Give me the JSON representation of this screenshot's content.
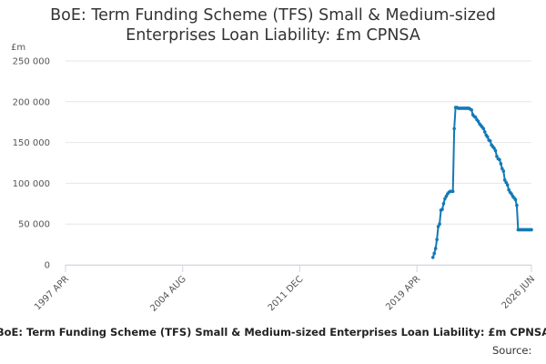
{
  "chart_data": {
    "type": "line",
    "title": "BoE: Term Funding Scheme (TFS) Small & Medium-sized Enterprises Loan Liability: £m CPNSA",
    "y_label": "£m",
    "footer": "BoE: Term Funding Scheme (TFS) Small & Medium-sized Enterprises Loan Liability: £m CPNSA",
    "source": "Source:",
    "xlim": [
      "1997 APR",
      "2026 JUN"
    ],
    "xticks": [
      "1997 APR",
      "2004 AUG",
      "2011 DEC",
      "2019 APR",
      "2026 JUN"
    ],
    "ylim": [
      0,
      250000
    ],
    "yticks": [
      {
        "value": 0,
        "label": "0"
      },
      {
        "value": 50000,
        "label": "50 000"
      },
      {
        "value": 100000,
        "label": "100 000"
      },
      {
        "value": 150000,
        "label": "150 000"
      },
      {
        "value": 200000,
        "label": "200 000"
      },
      {
        "value": 250000,
        "label": "250 000"
      }
    ],
    "grid": true,
    "x": [
      "2020 APR",
      "2020 MAY",
      "2020 JUN",
      "2020 JUL",
      "2020 AUG",
      "2020 SEP",
      "2020 OCT",
      "2020 NOV",
      "2020 DEC",
      "2021 JAN",
      "2021 FEB",
      "2021 MAR",
      "2021 APR",
      "2021 MAY",
      "2021 JUN",
      "2021 JUL",
      "2021 AUG",
      "2021 SEP",
      "2021 OCT",
      "2021 NOV",
      "2021 DEC",
      "2022 JAN",
      "2022 FEB",
      "2022 MAR",
      "2022 APR",
      "2022 MAY",
      "2022 JUN",
      "2022 JUL",
      "2022 AUG",
      "2022 SEP",
      "2022 OCT",
      "2022 NOV",
      "2022 DEC",
      "2023 JAN",
      "2023 FEB",
      "2023 MAR",
      "2023 APR",
      "2023 MAY",
      "2023 JUN",
      "2023 JUL",
      "2023 AUG",
      "2023 SEP",
      "2023 OCT",
      "2023 NOV",
      "2023 DEC",
      "2024 JAN",
      "2024 FEB",
      "2024 MAR",
      "2024 APR",
      "2024 MAY",
      "2024 JUN",
      "2024 JUL",
      "2024 AUG",
      "2024 SEP",
      "2024 OCT",
      "2024 NOV",
      "2024 DEC",
      "2025 JAN",
      "2025 FEB",
      "2025 MAR",
      "2025 APR",
      "2025 MAY",
      "2025 JUN",
      "2025 JUL",
      "2025 AUG",
      "2025 SEP",
      "2025 OCT",
      "2025 NOV",
      "2025 DEC",
      "2026 JAN",
      "2026 FEB",
      "2026 MAR",
      "2026 APR",
      "2026 MAY",
      "2026 JUN"
    ],
    "series": [
      {
        "color": "#1279b6",
        "values": [
          9000,
          14000,
          20000,
          31000,
          47000,
          50000,
          67000,
          68000,
          75000,
          81000,
          84000,
          87000,
          89000,
          90000,
          90000,
          90000,
          167000,
          193000,
          193000,
          192000,
          192000,
          192000,
          192000,
          192000,
          192000,
          192000,
          192000,
          192000,
          191000,
          190000,
          184000,
          182000,
          181000,
          178000,
          176000,
          173000,
          171000,
          169000,
          167000,
          163000,
          159000,
          157000,
          153000,
          152000,
          147000,
          145000,
          143000,
          140000,
          133000,
          130000,
          129000,
          124000,
          118000,
          115000,
          104000,
          101000,
          98000,
          92000,
          89000,
          87000,
          84000,
          82000,
          80000,
          73000,
          43000,
          43000,
          43000,
          43000,
          43000,
          43000,
          43000,
          43000,
          43000,
          43000,
          43000
        ]
      }
    ]
  }
}
